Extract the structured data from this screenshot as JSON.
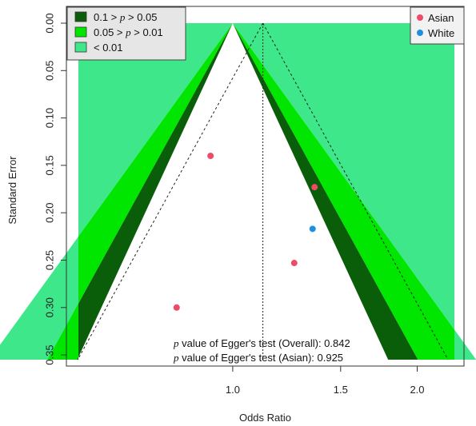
{
  "chart_data": {
    "type": "scatter",
    "subtype": "contour-enhanced funnel plot",
    "xlabel": "Odds Ratio",
    "ylabel": "Standard Error",
    "x_scale": "log",
    "x_ticks": [
      1.0,
      1.5,
      2.0
    ],
    "x_tick_labels": [
      "1.0",
      "1.5",
      "2.0"
    ],
    "y_ticks": [
      0.0,
      0.05,
      0.1,
      0.15,
      0.2,
      0.25,
      0.3,
      0.35
    ],
    "y_tick_labels": [
      "0.00",
      "0.05",
      "0.10",
      "0.15",
      "0.20",
      "0.25",
      "0.30",
      "0.35"
    ],
    "y_reversed": true,
    "ylim": [
      0.0,
      0.355
    ],
    "xlim": [
      0.56,
      2.3
    ],
    "pooled_or": 1.12,
    "reference_or": 1.0,
    "contours": [
      {
        "label_parts": [
          "0.1 > ",
          "p",
          " > 0.05"
        ],
        "color": "#0a5e0a",
        "z_inner": 1.645,
        "z_outer": 1.96
      },
      {
        "label_parts": [
          "0.05 > ",
          "p",
          " > 0.01"
        ],
        "color": "#00e600",
        "z_inner": 1.96,
        "z_outer": 2.576
      },
      {
        "label_parts": [
          "< 0.01",
          "",
          ""
        ],
        "color": "#3ee88a",
        "z_inner": 2.576,
        "z_outer": 99
      }
    ],
    "series": [
      {
        "name": "Asian",
        "color": "#ef4a68",
        "points": [
          {
            "x": 0.92,
            "y": 0.14
          },
          {
            "x": 1.36,
            "y": 0.173
          },
          {
            "x": 1.26,
            "y": 0.253
          },
          {
            "x": 0.81,
            "y": 0.3
          }
        ]
      },
      {
        "name": "White",
        "color": "#1f8fe0",
        "points": [
          {
            "x": 1.35,
            "y": 0.217
          }
        ]
      }
    ],
    "annotations": [
      {
        "italic": "p",
        "text": " value of Egger's test (Overall): 0.842"
      },
      {
        "italic": "p",
        "text": " value of Egger's test (Asian): 0.925"
      }
    ]
  }
}
